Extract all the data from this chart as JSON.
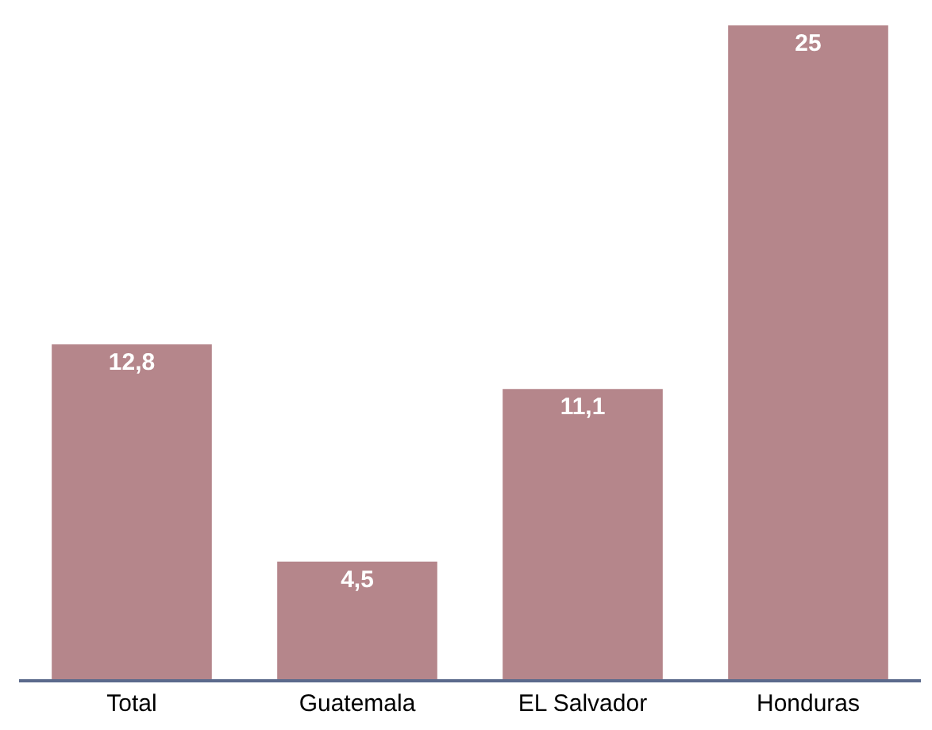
{
  "chart_data": {
    "type": "bar",
    "categories": [
      "Total",
      "Guatemala",
      "EL Salvador",
      "Honduras"
    ],
    "values": [
      12.8,
      4.5,
      11.1,
      25
    ],
    "value_labels": [
      "12,8",
      "4,5",
      "11,1",
      "25"
    ],
    "color": "#b5868b"
  }
}
